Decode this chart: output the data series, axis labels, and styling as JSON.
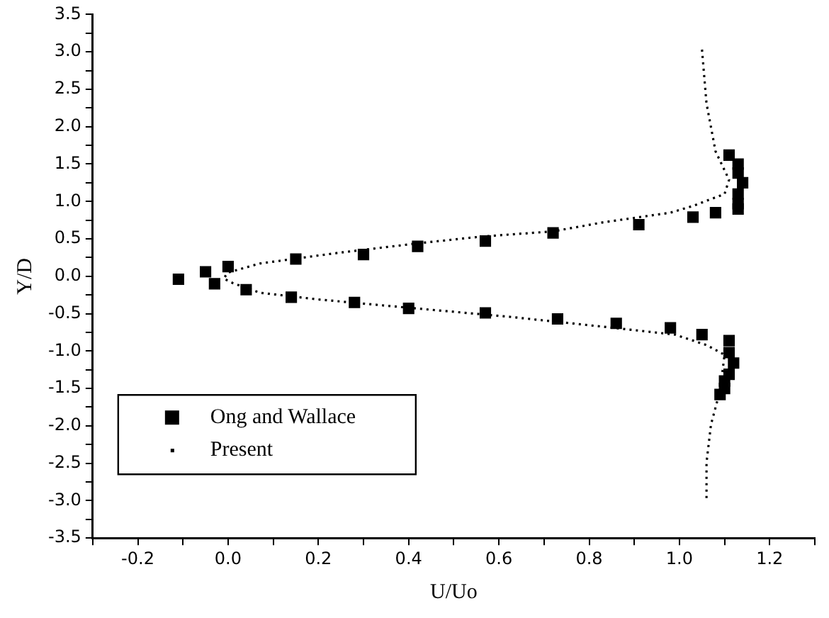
{
  "chart_data": {
    "type": "scatter",
    "xlabel": "U/Uo",
    "ylabel": "Y/D",
    "xlim": [
      -0.3,
      1.3
    ],
    "ylim": [
      -3.5,
      3.5
    ],
    "xticks": [
      {
        "value": -0.3,
        "label": null
      },
      -0.2,
      {
        "value": -0.1,
        "label": null
      },
      {
        "value": 0,
        "label": "0.0"
      },
      {
        "value": 0.1,
        "label": null
      },
      0.2,
      {
        "value": 0.3,
        "label": null
      },
      0.4,
      {
        "value": 0.5,
        "label": null
      },
      0.6,
      {
        "value": 0.7,
        "label": null
      },
      0.8,
      {
        "value": 0.9,
        "label": null
      },
      {
        "value": 1,
        "label": "1.0"
      },
      {
        "value": 1.1,
        "label": null
      },
      1.2,
      {
        "value": 1.3,
        "label": null
      }
    ],
    "yticks": [
      -3.5,
      {
        "value": -3.25,
        "label": null
      },
      {
        "value": -3,
        "label": "-3.0"
      },
      {
        "value": -2.75,
        "label": null
      },
      -2.5,
      {
        "value": -2.25,
        "label": null
      },
      {
        "value": -2,
        "label": "-2.0"
      },
      {
        "value": -1.75,
        "label": null
      },
      -1.5,
      {
        "value": -1.25,
        "label": null
      },
      {
        "value": -1,
        "label": "-1.0"
      },
      {
        "value": -0.75,
        "label": null
      },
      -0.5,
      {
        "value": -0.25,
        "label": null
      },
      {
        "value": 0,
        "label": "0.0"
      },
      {
        "value": 0.25,
        "label": null
      },
      0.5,
      {
        "value": 0.75,
        "label": null
      },
      {
        "value": 1,
        "label": "1.0"
      },
      {
        "value": 1.25,
        "label": null
      },
      1.5,
      {
        "value": 1.75,
        "label": null
      },
      {
        "value": 2,
        "label": "2.0"
      },
      {
        "value": 2.25,
        "label": null
      },
      2.5,
      {
        "value": 2.75,
        "label": null
      },
      {
        "value": 3,
        "label": "3.0"
      },
      {
        "value": 3.25,
        "label": null
      },
      3.5
    ],
    "grid": false,
    "legend": "bottom left",
    "series": [
      {
        "name": "Ong and Wallace",
        "type": "scatter",
        "marker": "square",
        "color": "#000000",
        "x": [
          -0.11,
          -0.05,
          -0.03,
          0.0,
          0.04,
          0.15,
          0.3,
          0.42,
          0.57,
          0.72,
          0.91,
          1.03,
          1.08,
          1.13,
          1.13,
          1.13,
          1.14,
          1.13,
          1.13,
          1.11,
          0.14,
          0.28,
          0.4,
          0.57,
          0.73,
          0.86,
          0.98,
          1.05,
          1.11,
          1.11,
          1.12,
          1.11,
          1.1,
          1.1,
          1.09
        ],
        "values": [
          -0.04,
          0.06,
          -0.1,
          0.13,
          -0.18,
          0.23,
          0.29,
          0.4,
          0.47,
          0.58,
          0.69,
          0.79,
          0.85,
          0.9,
          0.97,
          1.1,
          1.25,
          1.38,
          1.5,
          1.62,
          -0.28,
          -0.35,
          -0.43,
          -0.49,
          -0.57,
          -0.63,
          -0.69,
          -0.78,
          -0.86,
          -1.02,
          -1.16,
          -1.31,
          -1.4,
          -1.5,
          -1.58
        ]
      },
      {
        "name": "Present",
        "type": "line",
        "marker": "none",
        "line_style": "dotted",
        "color": "#000000",
        "x": [
          1.05,
          1.06,
          1.08,
          1.11,
          1.1,
          1.03,
          0.98,
          0.83,
          0.72,
          0.56,
          0.42,
          0.24,
          0.07,
          0.0,
          -0.01,
          0.01,
          0.07,
          0.2,
          0.38,
          0.62,
          0.84,
          0.99,
          1.06,
          1.1,
          1.09,
          1.07,
          1.06,
          1.06
        ],
        "values": [
          3.03,
          2.31,
          1.67,
          1.29,
          1.1,
          0.94,
          0.85,
          0.72,
          0.6,
          0.53,
          0.44,
          0.31,
          0.17,
          0.05,
          -0.03,
          -0.09,
          -0.22,
          -0.31,
          -0.41,
          -0.54,
          -0.68,
          -0.78,
          -0.92,
          -1.05,
          -1.53,
          -1.98,
          -2.49,
          -3.0
        ]
      }
    ]
  }
}
